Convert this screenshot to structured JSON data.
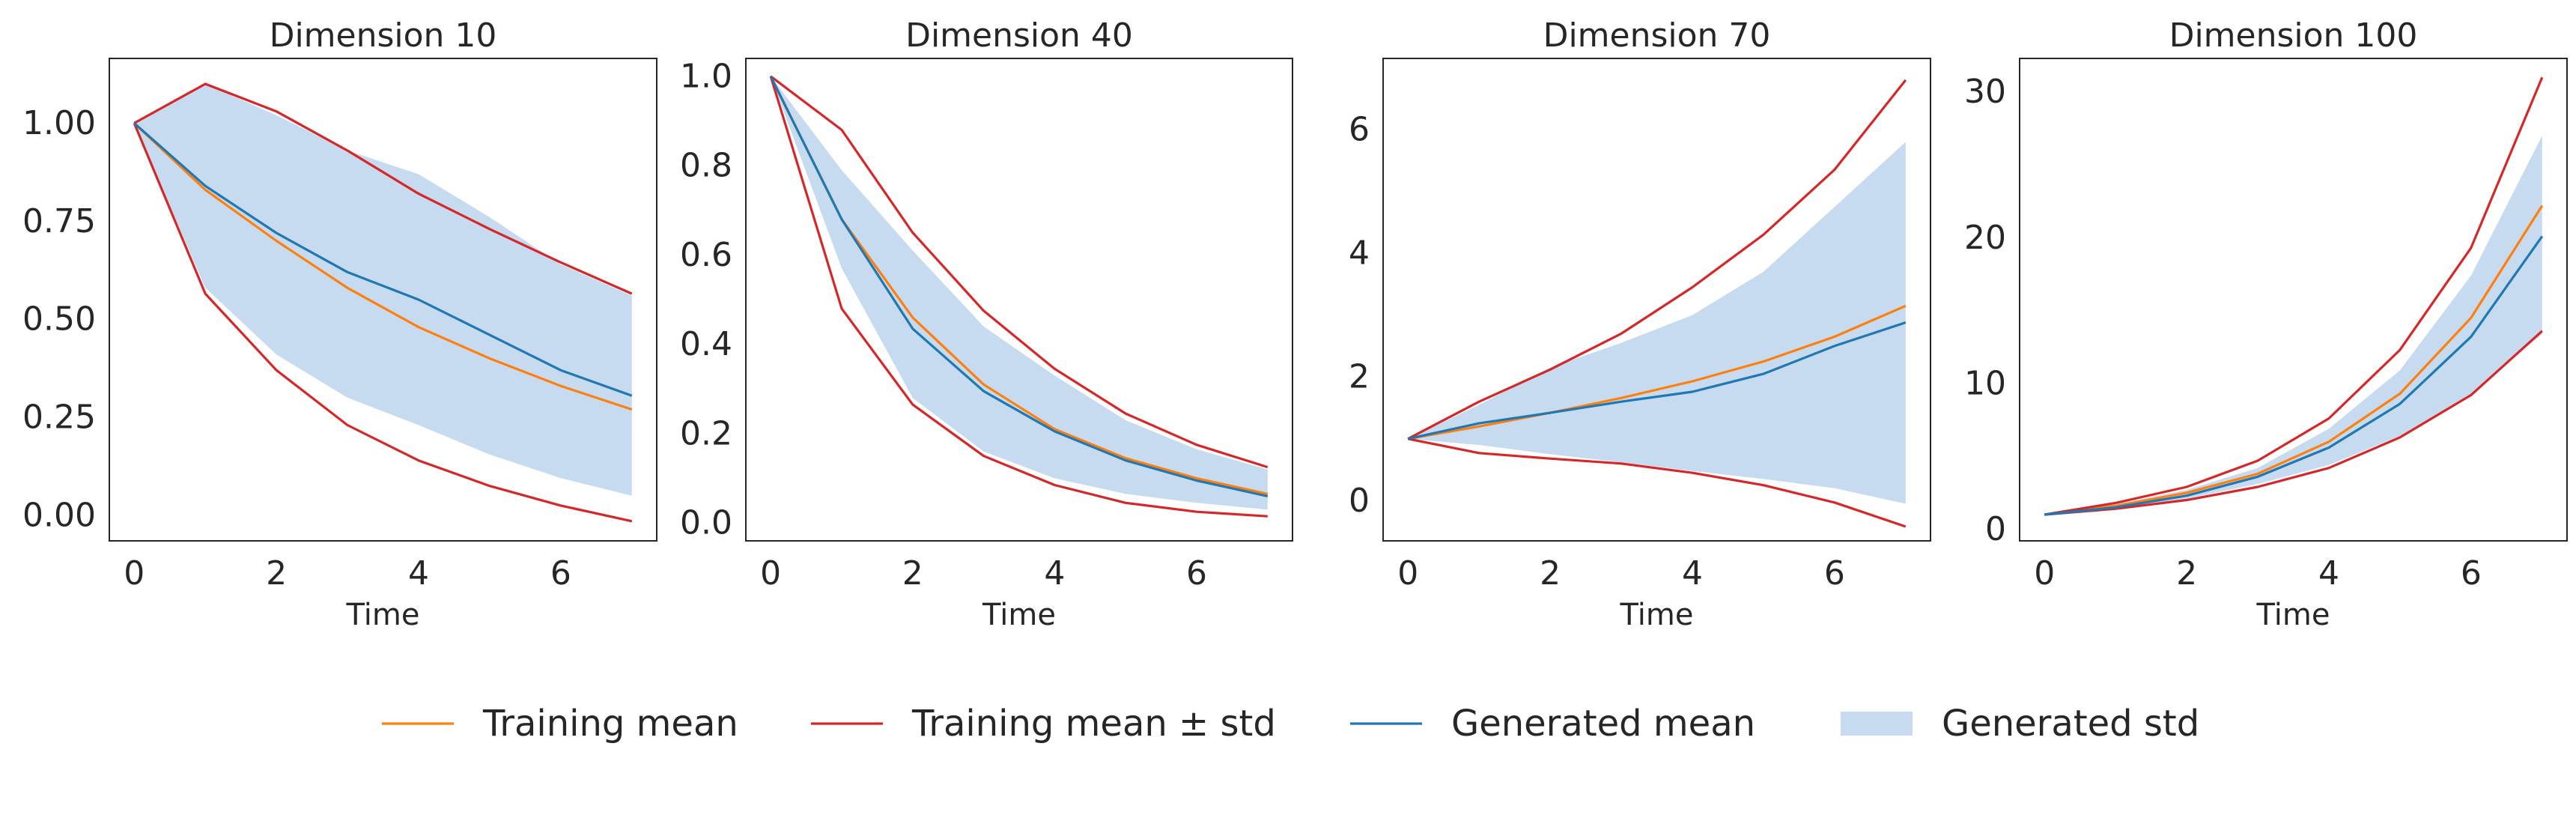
{
  "figure": {
    "background": "#ffffff"
  },
  "legend": {
    "placement": "bottom-center",
    "entries": [
      {
        "label": "Training mean",
        "kind": "line",
        "color": "#ff7f0e"
      },
      {
        "label": "Training mean ± std",
        "kind": "line",
        "color": "#d62728"
      },
      {
        "label": "Generated mean",
        "kind": "line",
        "color": "#1f77b4"
      },
      {
        "label": "Generated std",
        "kind": "band",
        "color": "#c6dbef"
      }
    ]
  },
  "chart_data": [
    {
      "type": "line",
      "title": "Dimension 10",
      "xlabel": "Time",
      "ylabel": "",
      "grid": false,
      "xlim": [
        -0.35,
        7.35
      ],
      "ylim": [
        -0.065,
        1.165
      ],
      "xticks": [
        0,
        2,
        4,
        6
      ],
      "xtick_labels": [
        "0",
        "2",
        "4",
        "6"
      ],
      "yticks": [
        0,
        0.25,
        0.5,
        0.75,
        1.0
      ],
      "ytick_labels": [
        "0.00",
        "0.25",
        "0.50",
        "0.75",
        "1.00"
      ],
      "x": [
        0,
        1,
        2,
        3,
        4,
        5,
        6,
        7
      ],
      "series": [
        {
          "name": "Training mean",
          "role": "train_mean",
          "color": "#ff7f0e",
          "values": [
            1.0,
            0.83,
            0.7,
            0.58,
            0.48,
            0.4,
            0.33,
            0.27
          ]
        },
        {
          "name": "Training mean ± std",
          "role": "train_upper",
          "color": "#d62728",
          "values": [
            1.0,
            1.1,
            1.03,
            0.93,
            0.82,
            0.73,
            0.645,
            0.565
          ]
        },
        {
          "name": "Training mean ± std",
          "role": "train_lower",
          "color": "#d62728",
          "values": [
            1.0,
            0.565,
            0.37,
            0.23,
            0.14,
            0.075,
            0.025,
            -0.015
          ]
        },
        {
          "name": "Generated mean",
          "role": "gen_mean",
          "color": "#1f77b4",
          "values": [
            1.0,
            0.84,
            0.72,
            0.62,
            0.55,
            0.46,
            0.37,
            0.305
          ]
        }
      ],
      "band": {
        "name": "Generated std",
        "color": "#c6dbef",
        "upper": [
          1.0,
          1.1,
          1.02,
          0.93,
          0.87,
          0.76,
          0.64,
          0.56
        ],
        "lower": [
          1.0,
          0.58,
          0.41,
          0.3,
          0.23,
          0.155,
          0.095,
          0.05
        ]
      }
    },
    {
      "type": "line",
      "title": "Dimension 40",
      "xlabel": "Time",
      "ylabel": "",
      "grid": false,
      "xlim": [
        -0.35,
        7.35
      ],
      "ylim": [
        -0.04,
        1.04
      ],
      "xticks": [
        0,
        2,
        4,
        6
      ],
      "xtick_labels": [
        "0",
        "2",
        "4",
        "6"
      ],
      "yticks": [
        0,
        0.2,
        0.4,
        0.6,
        0.8,
        1.0
      ],
      "ytick_labels": [
        "0.0",
        "0.2",
        "0.4",
        "0.6",
        "0.8",
        "1.0"
      ],
      "x": [
        0,
        1,
        2,
        3,
        4,
        5,
        6,
        7
      ],
      "series": [
        {
          "name": "Training mean",
          "role": "train_mean",
          "color": "#ff7f0e",
          "values": [
            1.0,
            0.68,
            0.46,
            0.31,
            0.21,
            0.145,
            0.1,
            0.065
          ]
        },
        {
          "name": "Training mean ± std",
          "role": "train_upper",
          "color": "#d62728",
          "values": [
            1.0,
            0.88,
            0.65,
            0.475,
            0.345,
            0.245,
            0.175,
            0.125
          ]
        },
        {
          "name": "Training mean ± std",
          "role": "train_lower",
          "color": "#d62728",
          "values": [
            1.0,
            0.48,
            0.265,
            0.15,
            0.085,
            0.045,
            0.025,
            0.015
          ]
        },
        {
          "name": "Generated mean",
          "role": "gen_mean",
          "color": "#1f77b4",
          "values": [
            1.0,
            0.68,
            0.435,
            0.295,
            0.205,
            0.14,
            0.095,
            0.06
          ]
        }
      ],
      "band": {
        "name": "Generated std",
        "color": "#c6dbef",
        "upper": [
          1.0,
          0.79,
          0.61,
          0.44,
          0.33,
          0.23,
          0.165,
          0.12
        ],
        "lower": [
          1.0,
          0.57,
          0.28,
          0.16,
          0.1,
          0.065,
          0.045,
          0.03
        ]
      }
    },
    {
      "type": "line",
      "title": "Dimension 70",
      "xlabel": "Time",
      "ylabel": "",
      "grid": false,
      "xlim": [
        -0.35,
        7.35
      ],
      "ylim": [
        -0.65,
        7.15
      ],
      "xticks": [
        0,
        2,
        4,
        6
      ],
      "xtick_labels": [
        "0",
        "2",
        "4",
        "6"
      ],
      "yticks": [
        0,
        2,
        4,
        6
      ],
      "ytick_labels": [
        "0",
        "2",
        "4",
        "6"
      ],
      "x": [
        0,
        1,
        2,
        3,
        4,
        5,
        6,
        7
      ],
      "series": [
        {
          "name": "Training mean",
          "role": "train_mean",
          "color": "#ff7f0e",
          "values": [
            1.0,
            1.2,
            1.42,
            1.66,
            1.93,
            2.25,
            2.65,
            3.15
          ]
        },
        {
          "name": "Training mean ± std",
          "role": "train_upper",
          "color": "#d62728",
          "values": [
            1.0,
            1.6,
            2.12,
            2.7,
            3.45,
            4.3,
            5.35,
            6.8
          ]
        },
        {
          "name": "Training mean ± std",
          "role": "train_lower",
          "color": "#d62728",
          "values": [
            1.0,
            0.77,
            0.68,
            0.6,
            0.45,
            0.25,
            -0.03,
            -0.42
          ]
        },
        {
          "name": "Generated mean",
          "role": "gen_mean",
          "color": "#1f77b4",
          "values": [
            1.0,
            1.25,
            1.42,
            1.6,
            1.76,
            2.05,
            2.5,
            2.88
          ]
        }
      ],
      "band": {
        "name": "Generated std",
        "color": "#c6dbef",
        "upper": [
          1.0,
          1.55,
          2.15,
          2.55,
          3.0,
          3.7,
          4.75,
          5.8
        ],
        "lower": [
          1.0,
          0.9,
          0.75,
          0.62,
          0.48,
          0.35,
          0.2,
          -0.05
        ]
      }
    },
    {
      "type": "line",
      "title": "Dimension 100",
      "xlabel": "Time",
      "ylabel": "",
      "grid": false,
      "xlim": [
        -0.35,
        7.35
      ],
      "ylim": [
        -0.8,
        32.3
      ],
      "xticks": [
        0,
        2,
        4,
        6
      ],
      "xtick_labels": [
        "0",
        "2",
        "4",
        "6"
      ],
      "yticks": [
        0,
        10,
        20,
        30
      ],
      "ytick_labels": [
        "0",
        "10",
        "20",
        "30"
      ],
      "x": [
        0,
        1,
        2,
        3,
        4,
        5,
        6,
        7
      ],
      "series": [
        {
          "name": "Training mean",
          "role": "train_mean",
          "color": "#ff7f0e",
          "values": [
            1.0,
            1.6,
            2.5,
            3.8,
            6.0,
            9.3,
            14.5,
            22.2
          ]
        },
        {
          "name": "Training mean ± std",
          "role": "train_upper",
          "color": "#d62728",
          "values": [
            1.0,
            1.8,
            2.9,
            4.7,
            7.6,
            12.3,
            19.3,
            31.0
          ]
        },
        {
          "name": "Training mean ± std",
          "role": "train_lower",
          "color": "#d62728",
          "values": [
            1.0,
            1.4,
            2.0,
            2.9,
            4.2,
            6.3,
            9.2,
            13.6
          ]
        },
        {
          "name": "Generated mean",
          "role": "gen_mean",
          "color": "#1f77b4",
          "values": [
            1.0,
            1.5,
            2.3,
            3.6,
            5.6,
            8.6,
            13.2,
            20.1
          ]
        }
      ],
      "band": {
        "name": "Generated std",
        "color": "#c6dbef",
        "upper": [
          1.0,
          1.7,
          2.7,
          4.2,
          6.9,
          10.9,
          17.4,
          27.0
        ],
        "lower": [
          1.0,
          1.4,
          2.1,
          3.1,
          4.4,
          6.4,
          9.3,
          13.4
        ]
      }
    }
  ]
}
